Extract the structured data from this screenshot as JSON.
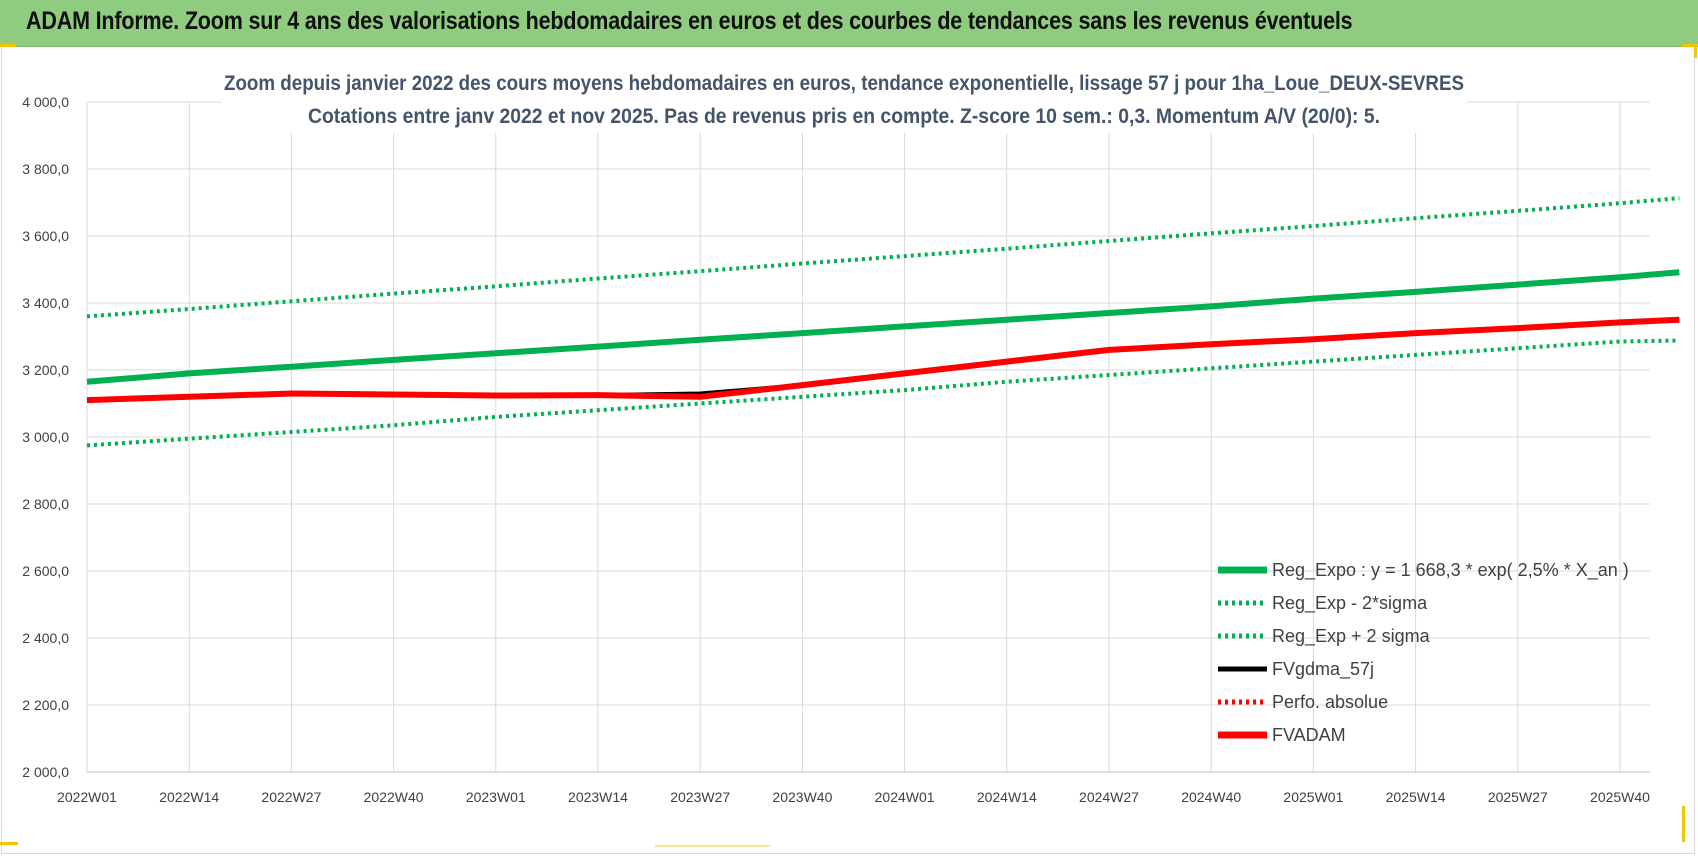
{
  "banner": {
    "title": "ADAM Informe. Zoom sur 4 ans des valorisations hebdomadaires en euros et des courbes de tendances sans les revenus éventuels",
    "background": "#8fcc7f"
  },
  "chart_data": {
    "type": "line",
    "title": "Zoom depuis janvier 2022 des cours moyens hebdomadaires en euros, tendance exponentielle, lissage 57 j pour 1ha_Loue_DEUX-SEVRES",
    "subtitle": "Cotations entre janv 2022 et nov 2025. Pas de revenus pris en compte. Z-score 10 sem.: 0,3. Momentum A/V (20/0): 5.",
    "xlabel": "",
    "ylabel": "",
    "ylim": [
      2000,
      4000
    ],
    "y_ticks": [
      "4 000,0",
      "3 800,0",
      "3 600,0",
      "3 400,0",
      "3 200,0",
      "3 000,0",
      "2 800,0",
      "2 600,0",
      "2 400,0",
      "2 200,0",
      "2 000,0"
    ],
    "x_ticks": [
      "2022W01",
      "2022W14",
      "2022W27",
      "2022W40",
      "2023W01",
      "2023W14",
      "2023W27",
      "2023W40",
      "2024W01",
      "2024W14",
      "2024W27",
      "2024W40",
      "2025W01",
      "2025W14",
      "2025W27",
      "2025W40"
    ],
    "grid": true,
    "legend_position": "bottom-right",
    "x": [
      "2022W01",
      "2022W14",
      "2022W27",
      "2022W40",
      "2023W01",
      "2023W14",
      "2023W27",
      "2023W40",
      "2024W01",
      "2024W14",
      "2024W27",
      "2024W40",
      "2025W01",
      "2025W14",
      "2025W27",
      "2025W40",
      "2025W47"
    ],
    "series": [
      {
        "name": "Reg_Expo : y = 1 668,3 * exp( 2,5% *  X_an )",
        "color": "#00b050",
        "style": "solid-thick",
        "values": [
          3165,
          3190,
          3210,
          3230,
          3250,
          3270,
          3290,
          3310,
          3330,
          3350,
          3370,
          3390,
          3413,
          3433,
          3455,
          3477,
          3492
        ]
      },
      {
        "name": "Reg_Exp - 2*sigma",
        "color": "#00b050",
        "style": "dotted",
        "values": [
          2975,
          2995,
          3015,
          3035,
          3060,
          3080,
          3100,
          3120,
          3140,
          3165,
          3185,
          3205,
          3225,
          3245,
          3265,
          3285,
          3288
        ]
      },
      {
        "name": "Reg_Exp + 2 sigma",
        "color": "#00b050",
        "style": "dotted",
        "values": [
          3360,
          3382,
          3405,
          3428,
          3450,
          3473,
          3495,
          3518,
          3540,
          3562,
          3585,
          3608,
          3630,
          3653,
          3675,
          3698,
          3713
        ]
      },
      {
        "name": "FVgdma_57j",
        "color": "#000000",
        "style": "solid",
        "values": [
          3110,
          3120,
          3130,
          3127,
          3124,
          3125,
          3130,
          3155,
          3190,
          3225,
          3260,
          3277,
          3292,
          3310,
          3325,
          3342,
          3350
        ]
      },
      {
        "name": "Perfo. absolue",
        "color": "#ff0000",
        "style": "dotted",
        "values": [
          3110,
          3120,
          3130,
          3127,
          3124,
          3125,
          3120,
          3155,
          3190,
          3225,
          3260,
          3277,
          3292,
          3310,
          3325,
          3342,
          3350
        ]
      },
      {
        "name": "FVADAM",
        "color": "#ff0000",
        "style": "solid-thick",
        "values": [
          3110,
          3120,
          3130,
          3127,
          3124,
          3125,
          3120,
          3155,
          3190,
          3225,
          3260,
          3277,
          3292,
          3310,
          3325,
          3342,
          3350
        ]
      }
    ]
  }
}
